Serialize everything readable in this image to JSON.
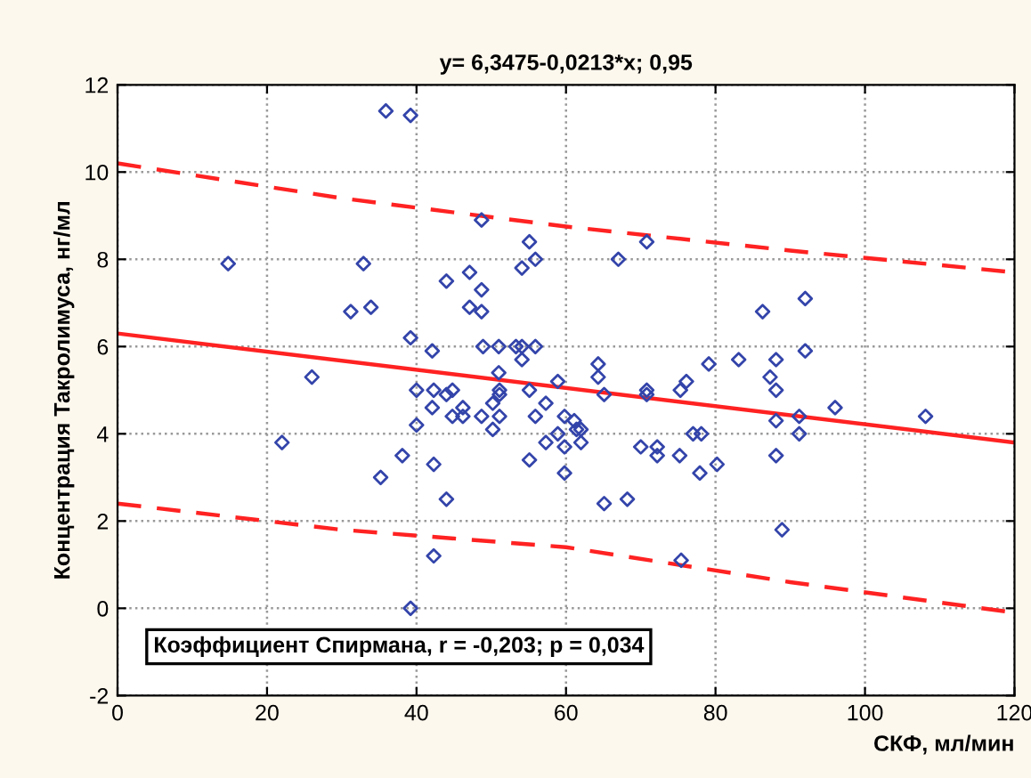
{
  "chart_data": {
    "type": "scatter",
    "title": "y= 6,3475-0,0213*x; 0,95",
    "xlabel": "СКФ, мл/мин",
    "ylabel": "Концентрация Такролимуса, нг/мл",
    "annotations": [
      "Коэффициент Спирмана, r = -0,203; p = 0,034"
    ],
    "xlim": [
      0,
      120
    ],
    "xticks": [
      0,
      20,
      40,
      60,
      80,
      100,
      120
    ],
    "ylim": [
      -2,
      12
    ],
    "yticks": [
      -2,
      0,
      2,
      4,
      6,
      8,
      10,
      12
    ],
    "grid": true,
    "series": [
      {
        "color": "#3344aa",
        "marker": "diamond",
        "x": [
          35.9,
          39.2,
          48.7,
          55.1,
          55.9,
          54.1,
          14.8,
          32.9,
          44.0,
          47.1,
          48.7,
          47.1,
          48.7,
          31.2,
          33.9,
          39.2,
          42.1,
          48.9,
          51.0,
          53.3,
          54.1,
          55.9,
          54.1,
          51.0,
          26.0,
          55.1,
          58.9,
          40.0,
          42.3,
          44.0,
          44.8,
          51.1,
          51.1,
          50.2,
          57.3,
          42.1,
          46.2,
          44.8,
          46.2,
          48.7,
          51.1,
          55.9,
          59.8,
          40.0,
          50.2,
          38.1,
          35.2,
          22.0,
          42.3,
          44.0,
          42.3,
          39.2,
          55.1,
          57.3,
          58.9,
          59.8,
          59.8,
          61.1,
          61.4,
          62.0,
          62.0,
          65.1,
          70.0,
          72.2,
          72.2,
          75.2,
          77.0,
          78.1,
          77.9,
          80.2,
          65.1,
          68.2,
          75.4,
          88.1,
          88.1,
          88.9,
          91.2,
          91.2,
          96.0,
          108.1,
          88.1,
          70.8,
          67.0,
          92.0,
          86.3,
          92.0,
          64.3,
          64.3,
          79.1,
          83.1,
          88.1,
          87.3,
          70.8,
          70.8,
          75.3,
          76.1
        ],
        "values": [
          11.4,
          11.3,
          8.9,
          8.4,
          8.0,
          7.8,
          7.9,
          7.9,
          7.5,
          7.7,
          7.3,
          6.9,
          6.8,
          6.8,
          6.9,
          6.2,
          5.9,
          6.0,
          6.0,
          6.0,
          6.0,
          6.0,
          5.7,
          5.4,
          5.3,
          5.0,
          5.2,
          5.0,
          5.0,
          4.9,
          5.0,
          5.0,
          4.9,
          4.7,
          4.7,
          4.6,
          4.6,
          4.4,
          4.4,
          4.4,
          4.4,
          4.4,
          4.4,
          4.2,
          4.1,
          3.5,
          3.0,
          3.8,
          3.3,
          2.5,
          1.2,
          0.0,
          3.4,
          3.8,
          4.0,
          3.1,
          3.7,
          4.3,
          4.1,
          4.1,
          3.8,
          4.9,
          3.7,
          3.7,
          3.5,
          3.5,
          4.0,
          4.0,
          3.1,
          3.3,
          2.4,
          2.5,
          1.1,
          4.3,
          3.5,
          1.8,
          4.0,
          4.4,
          4.6,
          4.4,
          5.0,
          8.4,
          8.0,
          7.1,
          6.8,
          5.9,
          5.6,
          5.3,
          5.6,
          5.7,
          5.7,
          5.3,
          5.0,
          4.9,
          5.0,
          5.2
        ]
      },
      {
        "type": "line",
        "color": "#ff2222",
        "line_style": "solid",
        "x": [
          0,
          120
        ],
        "values": [
          6.3,
          3.8
        ]
      },
      {
        "type": "line",
        "color": "#ff2222",
        "line_style": "dashed",
        "x": [
          0,
          30,
          60,
          90,
          120
        ],
        "values": [
          10.2,
          9.4,
          8.75,
          8.2,
          7.7
        ]
      },
      {
        "type": "line",
        "color": "#ff2222",
        "line_style": "dashed",
        "x": [
          0,
          30,
          60,
          90,
          120
        ],
        "values": [
          2.4,
          1.8,
          1.4,
          0.6,
          -0.1
        ]
      }
    ]
  }
}
